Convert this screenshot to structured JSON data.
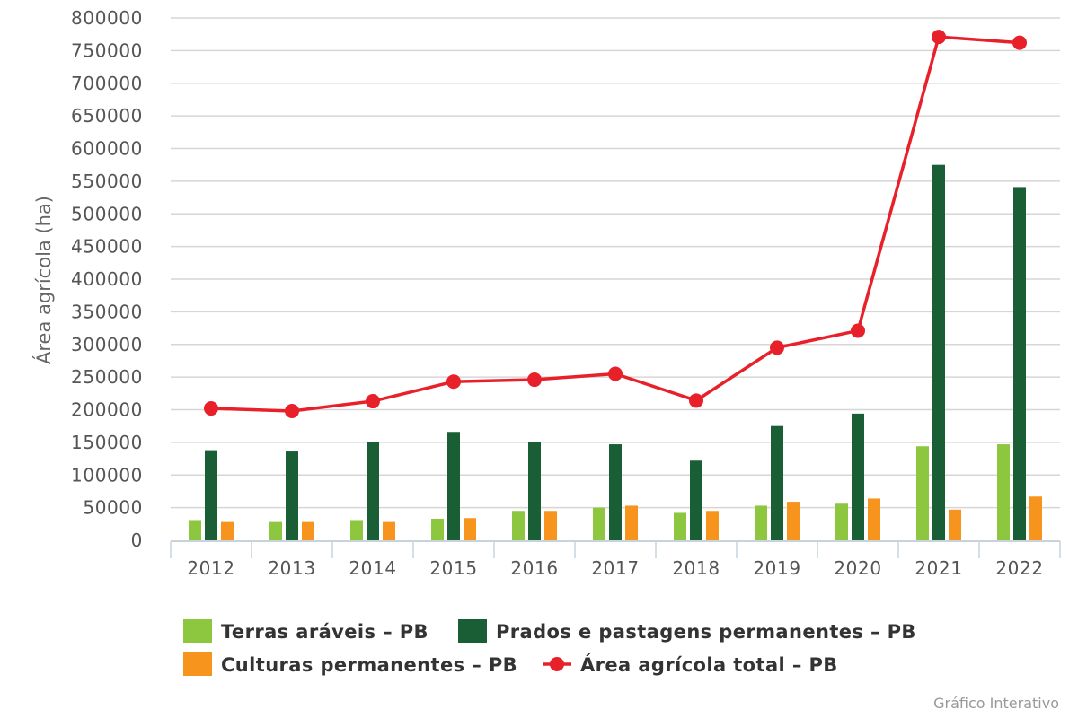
{
  "chart_data": {
    "type": "bar",
    "ylabel": "Área agrícola (ha)",
    "ylim": [
      0,
      800000
    ],
    "ytick_step": 50000,
    "grid": true,
    "legend_position": "bottom",
    "categories": [
      "2012",
      "2013",
      "2014",
      "2015",
      "2016",
      "2017",
      "2018",
      "2019",
      "2020",
      "2021",
      "2022"
    ],
    "series": [
      {
        "name": "Terras aráveis – PB",
        "type": "bar",
        "color": "#8dc63f",
        "values": [
          31000,
          28000,
          31000,
          33000,
          45000,
          50000,
          42000,
          53000,
          56000,
          144000,
          147000
        ]
      },
      {
        "name": "Prados e pastagens permanentes – PB",
        "type": "bar",
        "color": "#1a5e35",
        "values": [
          138000,
          136000,
          150000,
          166000,
          150000,
          147000,
          122000,
          175000,
          194000,
          575000,
          541000
        ]
      },
      {
        "name": "Culturas permanentes – PB",
        "type": "bar",
        "color": "#f7941d",
        "values": [
          28000,
          28000,
          28000,
          34000,
          45000,
          53000,
          45000,
          59000,
          64000,
          47000,
          67000
        ]
      },
      {
        "name": "Área agrícola total – PB",
        "type": "line",
        "color": "#e8202a",
        "values": [
          202000,
          198000,
          213000,
          243000,
          246000,
          255000,
          214000,
          295000,
          321000,
          771000,
          762000
        ]
      }
    ]
  },
  "credit": "Gráfico Interativo"
}
